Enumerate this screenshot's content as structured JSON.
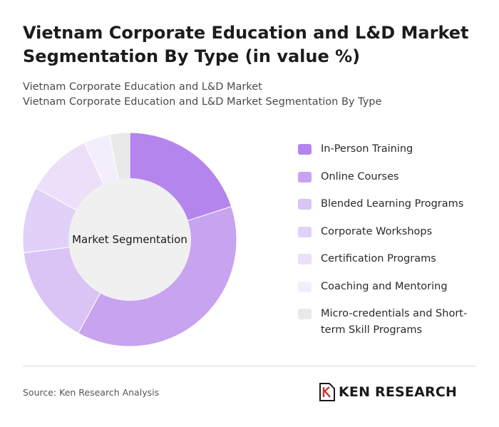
{
  "header": {
    "title": "Vietnam Corporate Education and L&D Market Segmentation By Type (in value %)",
    "subtitle_line1": "Vietnam Corporate Education and L&D Market",
    "subtitle_line2": "Vietnam Corporate Education and L&D Market Segmentation By Type"
  },
  "chart_data": {
    "type": "pie",
    "variant": "donut",
    "center_label": "Market Segmentation",
    "categories": [
      "In-Person Training",
      "Online Courses",
      "Blended Learning Programs",
      "Corporate Workshops",
      "Certification Programs",
      "Coaching and Mentoring",
      "Micro-credentials and Short-term Skill Programs"
    ],
    "values": [
      20,
      38,
      15,
      10,
      10,
      4,
      3
    ],
    "colors": [
      "#b585ee",
      "#c7a3f0",
      "#d9c4f5",
      "#e1d0f7",
      "#ebdff9",
      "#f4eefc",
      "#e9e9e9"
    ],
    "legend_position": "right"
  },
  "footer": {
    "source": "Source: Ken Research Analysis",
    "logo_text": "KEN RESEARCH"
  }
}
